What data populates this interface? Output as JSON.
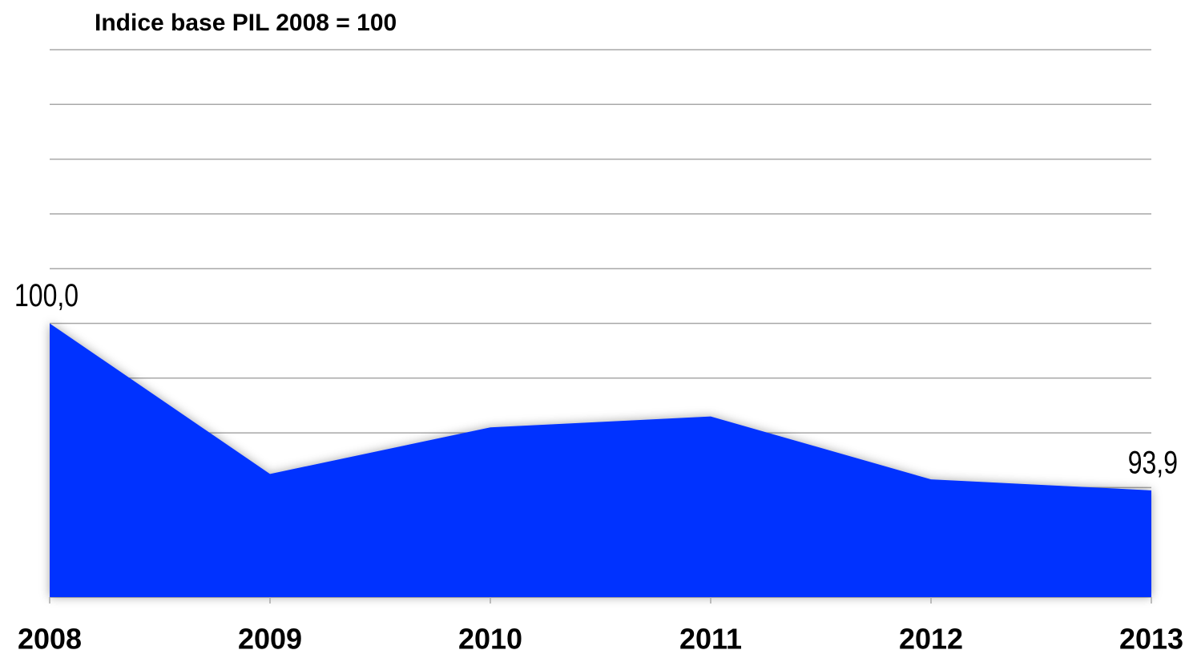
{
  "chart_data": {
    "type": "area",
    "title": "Indice base PIL 2008 = 100",
    "categories": [
      "2008",
      "2009",
      "2010",
      "2011",
      "2012",
      "2013"
    ],
    "values": [
      100,
      94.5,
      96.2,
      96.6,
      94.3,
      93.9
    ],
    "value_labels": [
      "100,0",
      null,
      null,
      null,
      null,
      "93,9"
    ],
    "color": "#0433ff",
    "ylim": [
      90,
      110
    ],
    "yticks": [
      90,
      92,
      94,
      96,
      98,
      100,
      102,
      104,
      106,
      108,
      110
    ],
    "grid": true
  }
}
